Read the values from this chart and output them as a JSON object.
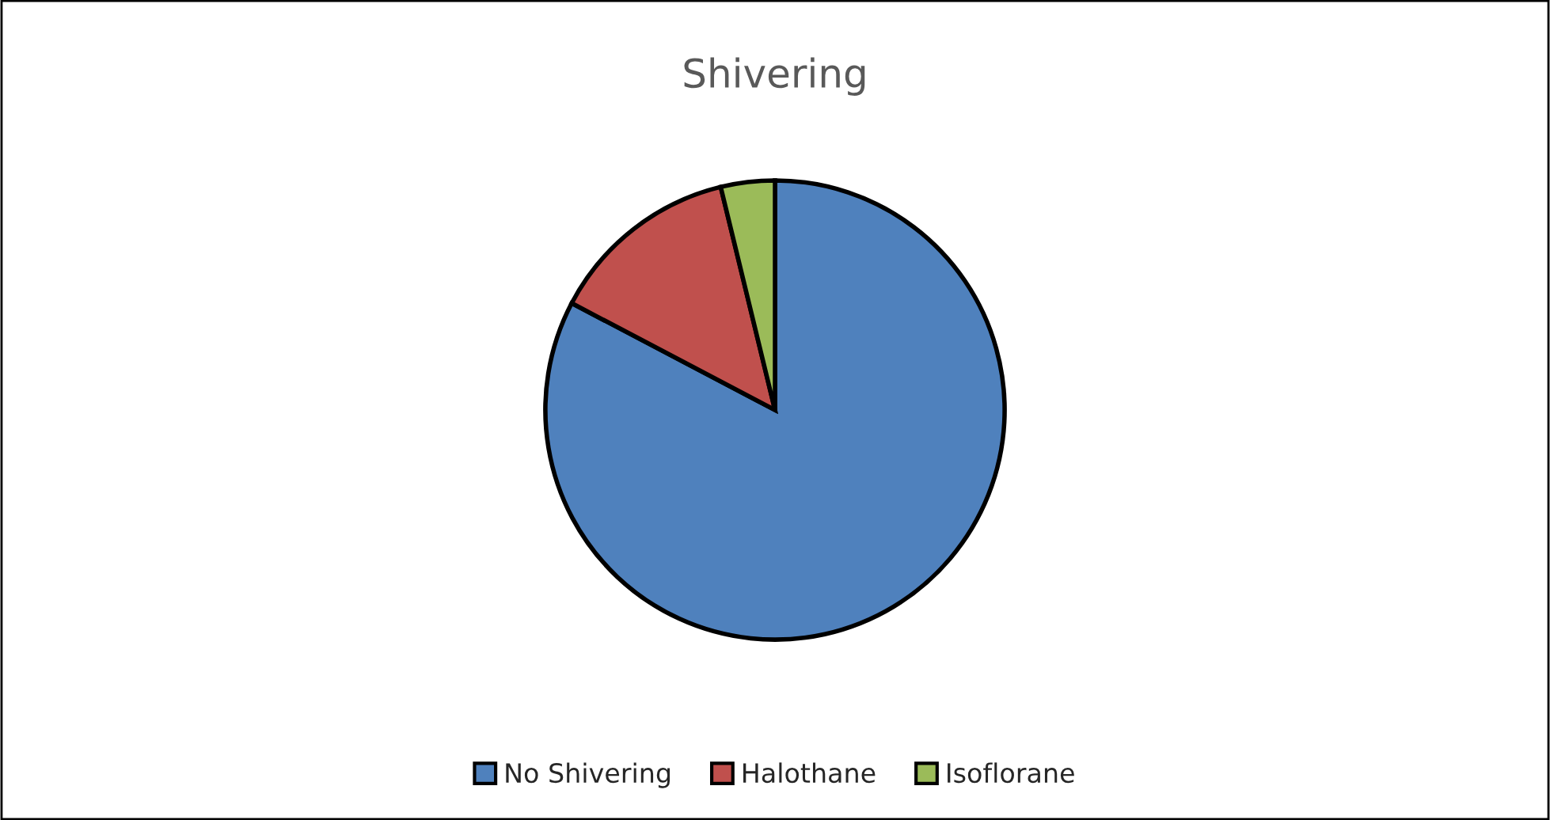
{
  "chart_data": {
    "type": "pie",
    "title": "Shivering",
    "categories": [
      "No Shivering",
      "Halothane",
      "Isoflorane"
    ],
    "values": [
      82.7,
      13.5,
      3.8
    ],
    "colors": [
      "#4f81bd",
      "#c0504d",
      "#9bbb59"
    ],
    "legend": "bottom"
  }
}
